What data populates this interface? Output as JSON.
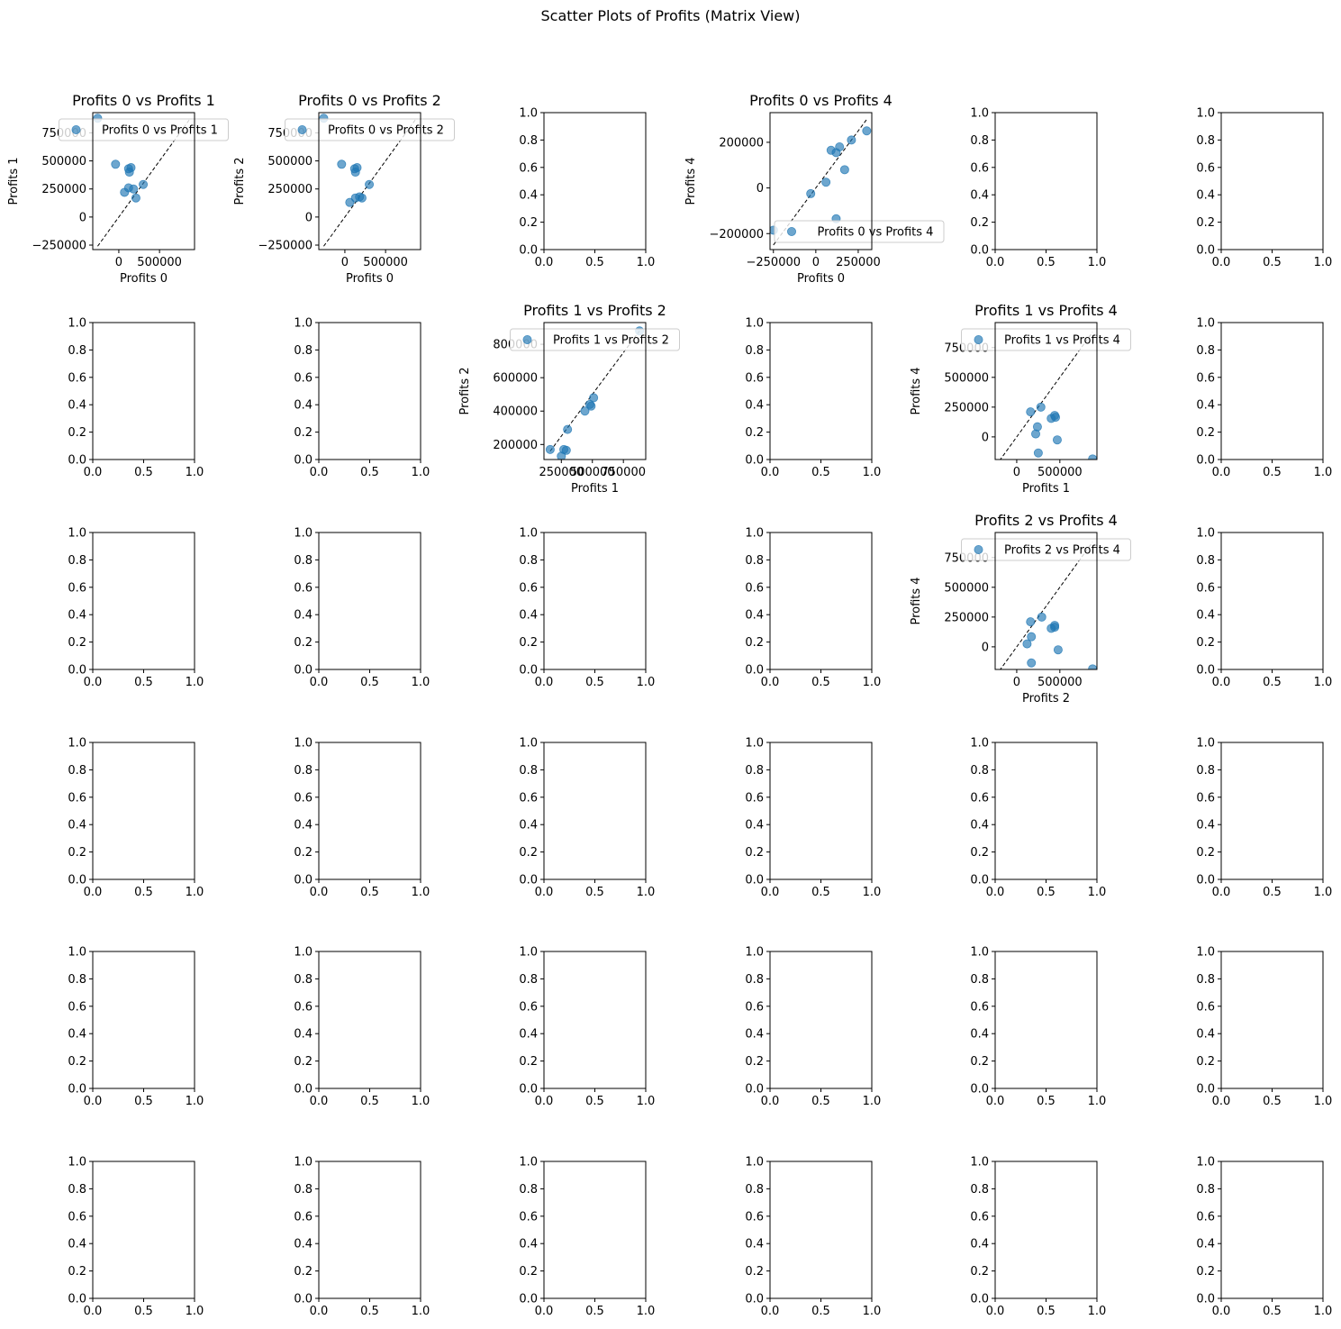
{
  "figure_title": "Scatter Plots of Profits (Matrix View)",
  "chart_data": {
    "type": "scatter",
    "title": "Scatter Plots of Profits (Matrix View)",
    "grid": {
      "rows": 6,
      "cols": 6
    },
    "marker_color": "#1f77b4",
    "reference_line": "y = x (dashed, black)",
    "empty_axes": {
      "xticks": [
        "0.0",
        "0.5",
        "1.0"
      ],
      "yticks": [
        "0.0",
        "0.2",
        "0.4",
        "0.6",
        "0.8",
        "1.0"
      ],
      "xlim": [
        0,
        1
      ],
      "ylim": [
        0,
        1
      ]
    },
    "panels": [
      {
        "row": 0,
        "col": 0,
        "title": "Profits 0 vs Profits 1",
        "xlabel": "Profits 0",
        "ylabel": "Profits 1",
        "legend": "Profits 0 vs Profits 1",
        "legend_loc": "upper center",
        "xlim": [
          -320000,
          930000
        ],
        "ylim": [
          -290000,
          930000
        ],
        "xticks": [
          0,
          500000
        ],
        "xtick_labels": [
          "0",
          "500000"
        ],
        "yticks": [
          -250000,
          0,
          250000,
          500000,
          750000
        ],
        "ytick_labels": [
          "−250000",
          "0",
          "250000",
          "500000",
          "750000"
        ],
        "line": [
          [
            -260000,
            -260000
          ],
          [
            880000,
            880000
          ]
        ],
        "points": [
          [
            -260000,
            880000
          ],
          [
            -40000,
            470000
          ],
          [
            120000,
            430000
          ],
          [
            130000,
            400000
          ],
          [
            150000,
            440000
          ],
          [
            70000,
            220000
          ],
          [
            120000,
            260000
          ],
          [
            180000,
            250000
          ],
          [
            210000,
            170000
          ],
          [
            300000,
            290000
          ]
        ]
      },
      {
        "row": 0,
        "col": 1,
        "title": "Profits 0 vs Profits 2",
        "xlabel": "Profits 0",
        "ylabel": "Profits 2",
        "legend": "Profits 0 vs Profits 2",
        "legend_loc": "upper center",
        "xlim": [
          -320000,
          930000
        ],
        "ylim": [
          -290000,
          930000
        ],
        "xticks": [
          0,
          500000
        ],
        "xtick_labels": [
          "0",
          "500000"
        ],
        "yticks": [
          -250000,
          0,
          250000,
          500000,
          750000
        ],
        "ytick_labels": [
          "−250000",
          "0",
          "250000",
          "500000",
          "750000"
        ],
        "line": [
          [
            -260000,
            -260000
          ],
          [
            880000,
            880000
          ]
        ],
        "points": [
          [
            -260000,
            880000
          ],
          [
            -40000,
            470000
          ],
          [
            120000,
            430000
          ],
          [
            130000,
            400000
          ],
          [
            150000,
            440000
          ],
          [
            60000,
            130000
          ],
          [
            130000,
            170000
          ],
          [
            180000,
            180000
          ],
          [
            210000,
            170000
          ],
          [
            300000,
            290000
          ]
        ]
      },
      {
        "row": 0,
        "col": 3,
        "title": "Profits 0 vs Profits 4",
        "xlabel": "Profits 0",
        "ylabel": "Profits 4",
        "legend": "Profits 0 vs Profits 4",
        "legend_loc": "lower right",
        "xlim": [
          -270000,
          330000
        ],
        "ylim": [
          -270000,
          330000
        ],
        "xticks": [
          -250000,
          0,
          250000
        ],
        "xtick_labels": [
          "−250000",
          "0",
          "250000"
        ],
        "yticks": [
          -200000,
          0,
          200000
        ],
        "ytick_labels": [
          "−200000",
          "0",
          "200000"
        ],
        "line": [
          [
            -250000,
            -250000
          ],
          [
            300000,
            300000
          ]
        ],
        "points": [
          [
            -250000,
            -185000
          ],
          [
            -30000,
            -25000
          ],
          [
            60000,
            25000
          ],
          [
            90000,
            165000
          ],
          [
            120000,
            155000
          ],
          [
            140000,
            180000
          ],
          [
            170000,
            80000
          ],
          [
            210000,
            210000
          ],
          [
            300000,
            250000
          ],
          [
            120000,
            -135000
          ]
        ]
      },
      {
        "row": 1,
        "col": 2,
        "title": "Profits 1 vs Profits 2",
        "xlabel": "Profits 1",
        "ylabel": "Profits 2",
        "legend": "Profits 1 vs Profits 2",
        "legend_loc": "upper center",
        "xlim": [
          110000,
          930000
        ],
        "ylim": [
          110000,
          930000
        ],
        "xticks": [
          250000,
          500000,
          750000
        ],
        "xtick_labels": [
          "250000",
          "500000",
          "750000"
        ],
        "yticks": [
          200000,
          400000,
          600000,
          800000
        ],
        "ytick_labels": [
          "200000",
          "400000",
          "600000",
          "800000"
        ],
        "line": [
          [
            160000,
            160000
          ],
          [
            880000,
            880000
          ]
        ],
        "points": [
          [
            160000,
            170000
          ],
          [
            250000,
            130000
          ],
          [
            270000,
            170000
          ],
          [
            290000,
            165000
          ],
          [
            300000,
            290000
          ],
          [
            440000,
            400000
          ],
          [
            480000,
            440000
          ],
          [
            490000,
            430000
          ],
          [
            510000,
            480000
          ],
          [
            880000,
            880000
          ]
        ]
      },
      {
        "row": 1,
        "col": 4,
        "title": "Profits 1 vs Profits 4",
        "xlabel": "Profits 1",
        "ylabel": "Profits 4",
        "legend": "Profits 1 vs Profits 4",
        "legend_loc": "upper center",
        "xlim": [
          -250000,
          930000
        ],
        "ylim": [
          -190000,
          960000
        ],
        "xticks": [
          0,
          500000
        ],
        "xtick_labels": [
          "0",
          "500000"
        ],
        "yticks": [
          0,
          250000,
          500000,
          750000
        ],
        "ytick_labels": [
          "0",
          "250000",
          "500000",
          "750000"
        ],
        "line": [
          [
            -200000,
            -200000
          ],
          [
            880000,
            880000
          ]
        ],
        "points": [
          [
            160000,
            210000
          ],
          [
            220000,
            25000
          ],
          [
            240000,
            85000
          ],
          [
            250000,
            -135000
          ],
          [
            280000,
            250000
          ],
          [
            400000,
            155000
          ],
          [
            440000,
            180000
          ],
          [
            450000,
            165000
          ],
          [
            470000,
            -25000
          ],
          [
            880000,
            -185000
          ]
        ]
      },
      {
        "row": 2,
        "col": 4,
        "title": "Profits 2 vs Profits 4",
        "xlabel": "Profits 2",
        "ylabel": "Profits 4",
        "legend": "Profits 2 vs Profits 4",
        "legend_loc": "upper center",
        "xlim": [
          -250000,
          930000
        ],
        "ylim": [
          -190000,
          960000
        ],
        "xticks": [
          0,
          500000
        ],
        "xtick_labels": [
          "0",
          "500000"
        ],
        "yticks": [
          0,
          250000,
          500000,
          750000
        ],
        "ytick_labels": [
          "0",
          "250000",
          "500000",
          "750000"
        ],
        "line": [
          [
            -200000,
            -200000
          ],
          [
            880000,
            880000
          ]
        ],
        "points": [
          [
            120000,
            25000
          ],
          [
            160000,
            210000
          ],
          [
            170000,
            85000
          ],
          [
            170000,
            -135000
          ],
          [
            290000,
            250000
          ],
          [
            400000,
            155000
          ],
          [
            440000,
            165000
          ],
          [
            440000,
            180000
          ],
          [
            480000,
            -25000
          ],
          [
            880000,
            -185000
          ]
        ]
      }
    ]
  }
}
